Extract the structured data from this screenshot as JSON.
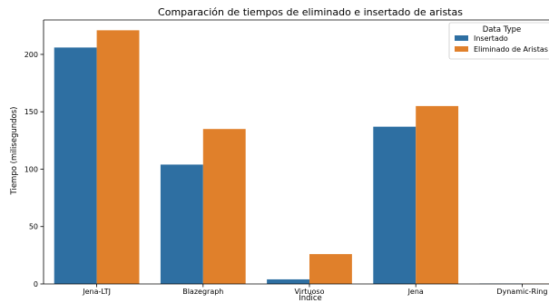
{
  "chart_data": {
    "type": "bar",
    "title": "Comparación de tiempos de eliminado e insertado de aristas",
    "xlabel": "Índice",
    "ylabel": "Tiempo (milisegundos)",
    "categories": [
      "Jena-LTJ",
      "Blazegraph",
      "Virtuoso",
      "Jena",
      "Dynamic-Ring"
    ],
    "series": [
      {
        "name": "Insertado",
        "color": "#2e6fa2",
        "values": [
          206,
          104,
          4,
          137,
          0.3
        ]
      },
      {
        "name": "Eliminado de Aristas",
        "color": "#e0802b",
        "values": [
          221,
          135,
          26,
          155,
          0.2
        ]
      }
    ],
    "ylim": [
      0,
      230
    ],
    "yticks": [
      0,
      50,
      100,
      150,
      200
    ],
    "grid": false,
    "legend": {
      "title": "Data Type",
      "placement": "top-right"
    }
  }
}
